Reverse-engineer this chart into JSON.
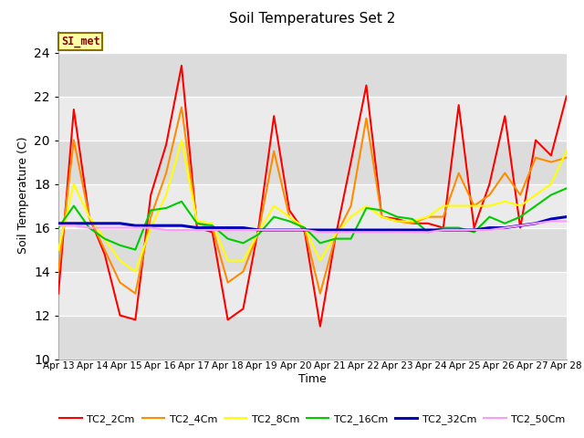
{
  "title": "Soil Temperatures Set 2",
  "xlabel": "Time",
  "ylabel": "Soil Temperature (C)",
  "ylim": [
    10,
    25
  ],
  "yticks": [
    10,
    12,
    14,
    16,
    18,
    20,
    22,
    24
  ],
  "xtick_labels": [
    "Apr 13",
    "Apr 14",
    "Apr 15",
    "Apr 16",
    "Apr 17",
    "Apr 18",
    "Apr 19",
    "Apr 20",
    "Apr 21",
    "Apr 22",
    "Apr 23",
    "Apr 24",
    "Apr 25",
    "Apr 26",
    "Apr 27",
    "Apr 28"
  ],
  "annotation_text": "SI_met",
  "plot_bg_color": "#e8e8e8",
  "fig_bg_color": "#ffffff",
  "line_colors": {
    "TC2_2Cm": "#ff0000",
    "TC2_4Cm": "#ff8c00",
    "TC2_8Cm": "#ffff00",
    "TC2_16Cm": "#00cc00",
    "TC2_32Cm": "#0000bb",
    "TC2_50Cm": "#ff99ff"
  },
  "band_colors": [
    "#dcdcdc",
    "#ebebeb"
  ],
  "data": {
    "TC2_2Cm": [
      13.0,
      21.4,
      16.5,
      14.8,
      12.0,
      11.8,
      17.5,
      19.8,
      23.4,
      16.0,
      15.8,
      11.8,
      12.3,
      16.0,
      21.1,
      16.8,
      15.8,
      11.5,
      15.6,
      19.0,
      22.5,
      16.5,
      16.4,
      16.2,
      16.2,
      16.0,
      21.6,
      16.0,
      18.0,
      21.1,
      16.0,
      20.0,
      19.3,
      22.0
    ],
    "TC2_4Cm": [
      14.0,
      20.0,
      16.5,
      15.0,
      13.5,
      13.0,
      16.5,
      18.5,
      21.5,
      16.2,
      16.0,
      13.5,
      14.0,
      15.8,
      19.5,
      16.5,
      15.9,
      13.0,
      15.6,
      17.0,
      21.0,
      16.5,
      16.3,
      16.2,
      16.5,
      16.5,
      18.5,
      17.0,
      17.5,
      18.5,
      17.5,
      19.2,
      19.0,
      19.2
    ],
    "TC2_8Cm": [
      15.0,
      18.0,
      16.5,
      15.5,
      14.5,
      14.0,
      16.0,
      17.5,
      20.0,
      16.3,
      16.2,
      14.5,
      14.5,
      15.8,
      17.0,
      16.5,
      16.0,
      14.5,
      15.7,
      16.5,
      17.0,
      16.5,
      16.3,
      16.3,
      16.5,
      17.0,
      17.0,
      17.0,
      17.0,
      17.2,
      17.0,
      17.5,
      18.0,
      19.5
    ],
    "TC2_16Cm": [
      16.0,
      17.0,
      16.0,
      15.5,
      15.2,
      15.0,
      16.8,
      16.9,
      17.2,
      16.2,
      16.1,
      15.5,
      15.3,
      15.7,
      16.5,
      16.3,
      16.0,
      15.3,
      15.5,
      15.5,
      16.9,
      16.8,
      16.5,
      16.4,
      15.8,
      16.0,
      16.0,
      15.8,
      16.5,
      16.2,
      16.5,
      17.0,
      17.5,
      17.8
    ],
    "TC2_32Cm": [
      16.2,
      16.2,
      16.2,
      16.2,
      16.2,
      16.1,
      16.1,
      16.1,
      16.1,
      16.0,
      16.0,
      16.0,
      16.0,
      15.9,
      15.9,
      15.9,
      15.9,
      15.9,
      15.9,
      15.9,
      15.9,
      15.9,
      15.9,
      15.9,
      15.9,
      15.9,
      15.9,
      15.9,
      16.0,
      16.0,
      16.1,
      16.2,
      16.4,
      16.5
    ],
    "TC2_50Cm": [
      16.1,
      16.1,
      16.0,
      16.0,
      16.0,
      16.0,
      16.0,
      15.9,
      15.9,
      15.9,
      15.9,
      15.9,
      15.9,
      15.9,
      15.9,
      15.9,
      15.9,
      15.8,
      15.8,
      15.8,
      15.8,
      15.8,
      15.8,
      15.8,
      15.8,
      15.9,
      15.9,
      15.9,
      15.9,
      16.0,
      16.1,
      16.2,
      16.3,
      16.3
    ]
  },
  "x_step": 0.44,
  "n_days": 16
}
